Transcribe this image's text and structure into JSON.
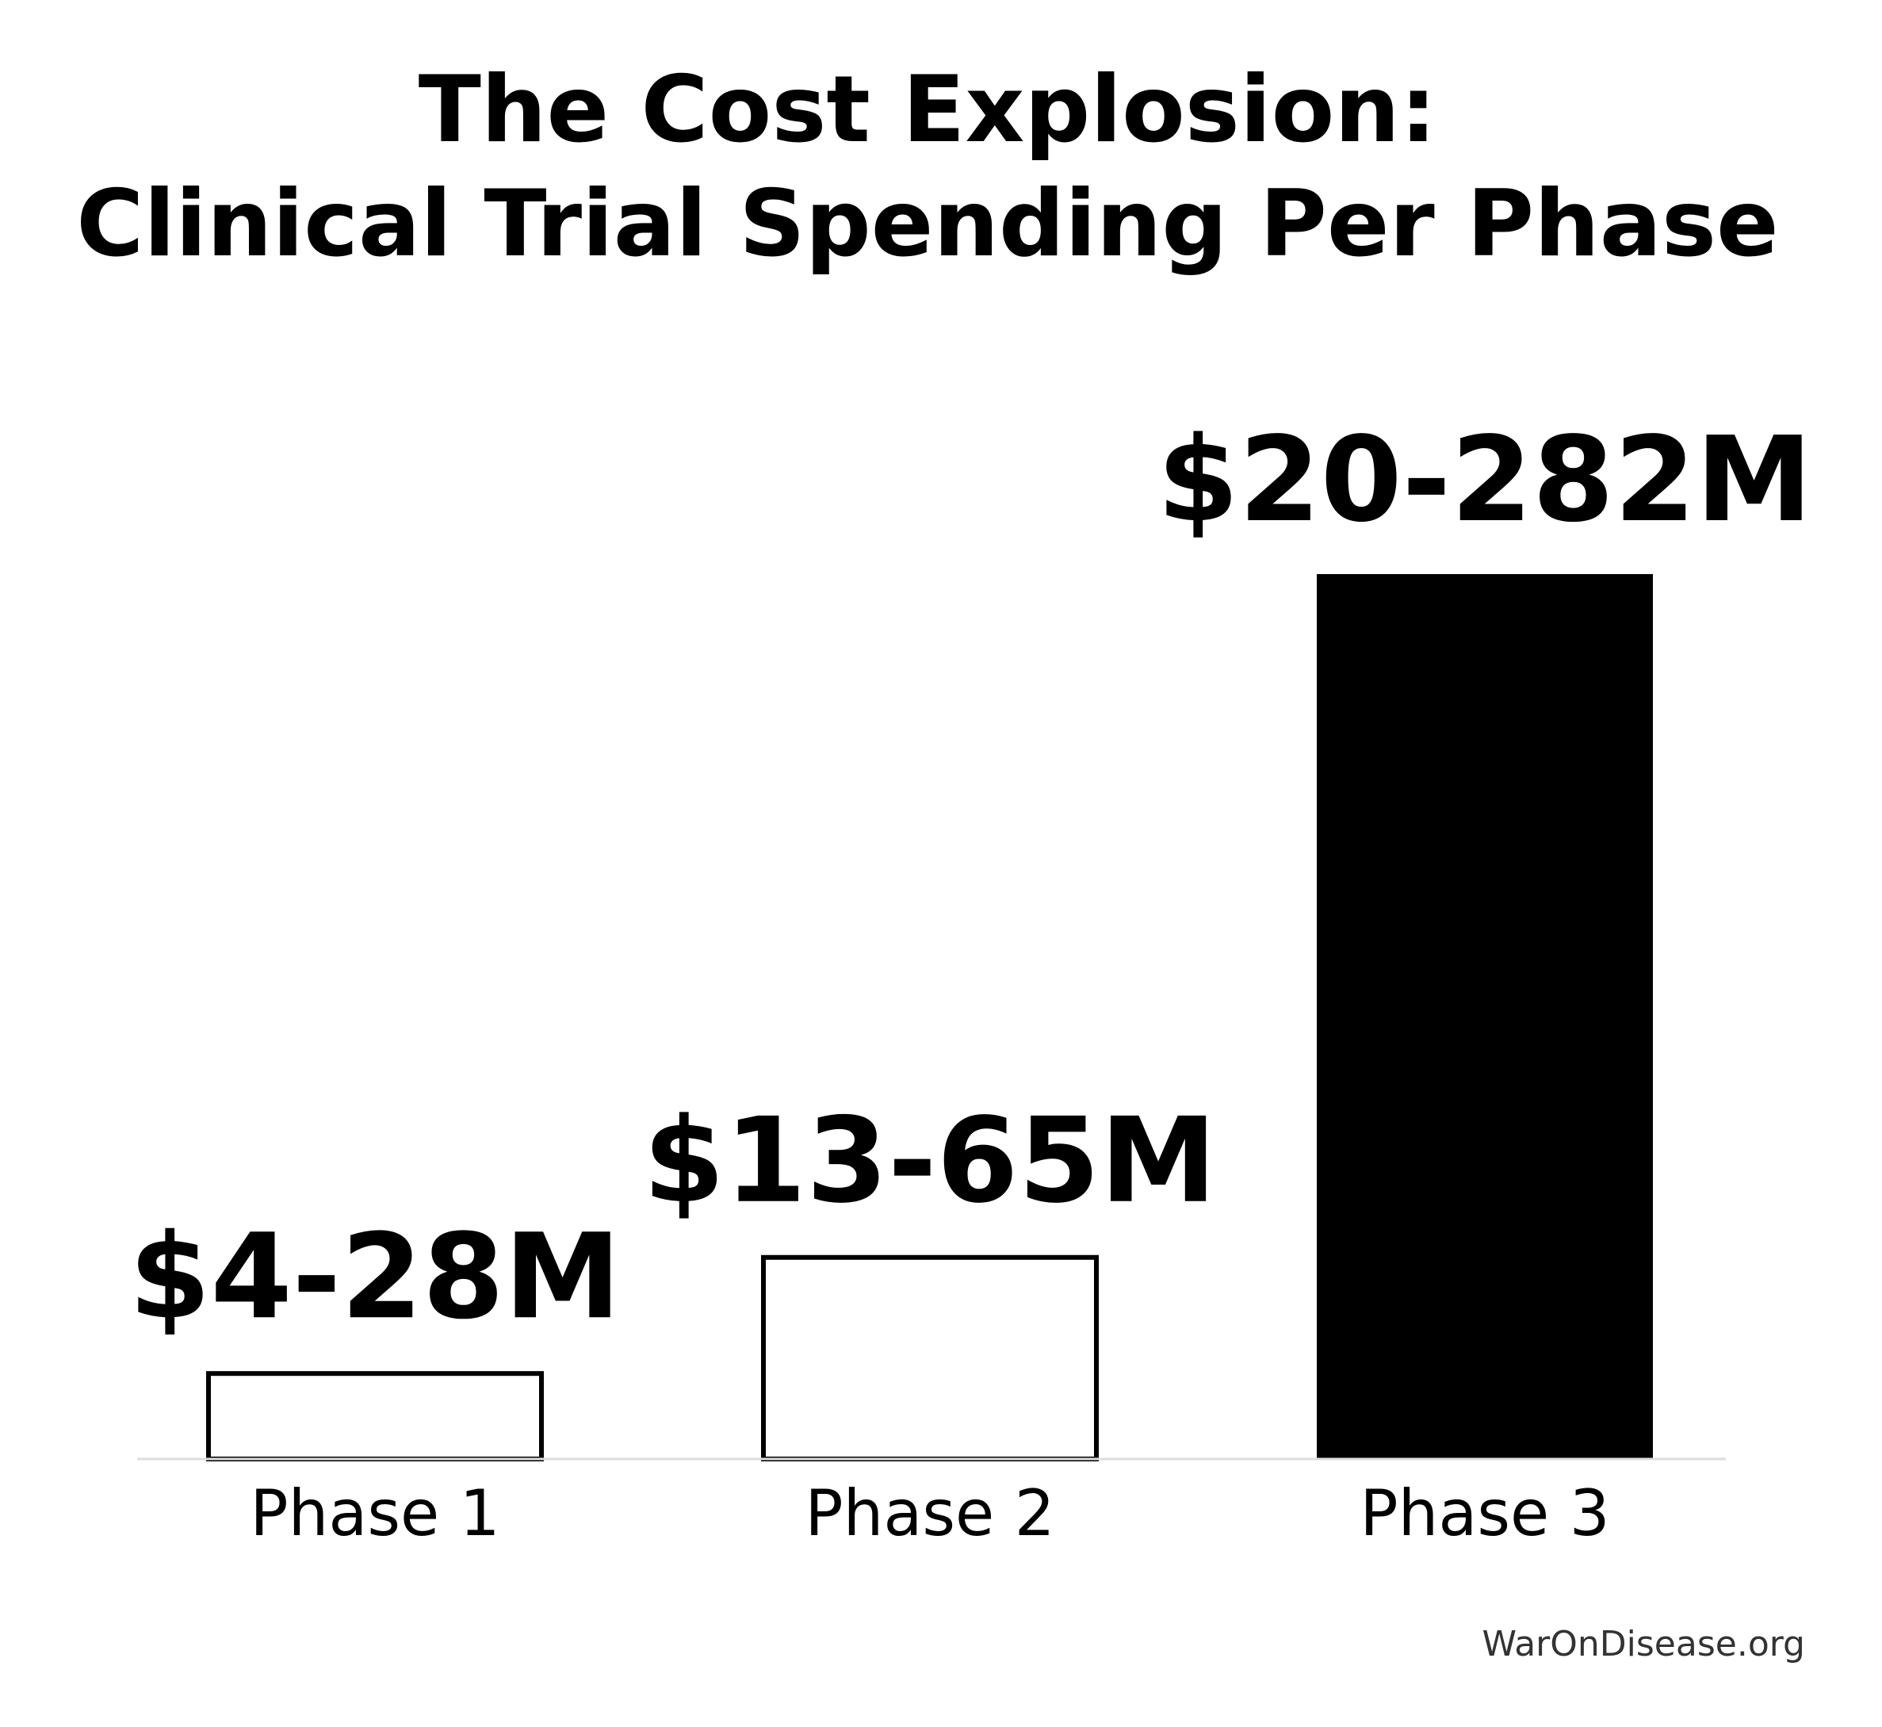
{
  "chart_data": {
    "type": "bar",
    "title": "The Cost Explosion:\nClinical Trial Spending Per Phase",
    "categories": [
      "Phase 1",
      "Phase 2",
      "Phase 3"
    ],
    "values": [
      28,
      65,
      282
    ],
    "ranges": [
      [
        4,
        28
      ],
      [
        13,
        65
      ],
      [
        20,
        282
      ]
    ],
    "value_labels": [
      "$4-28M",
      "$13-65M",
      "$20-282M"
    ],
    "unit": "$M",
    "xlabel": "",
    "ylabel": "",
    "ylim": [
      0,
      282
    ],
    "grid": false,
    "legend": "none",
    "bar_fills": [
      "#ffffff",
      "#ffffff",
      "#000000"
    ],
    "bar_stroke": "#000000",
    "axis_color": "#dddddd"
  },
  "footer": {
    "credit": "WarOnDisease.org",
    "credit_color": "#333333"
  }
}
